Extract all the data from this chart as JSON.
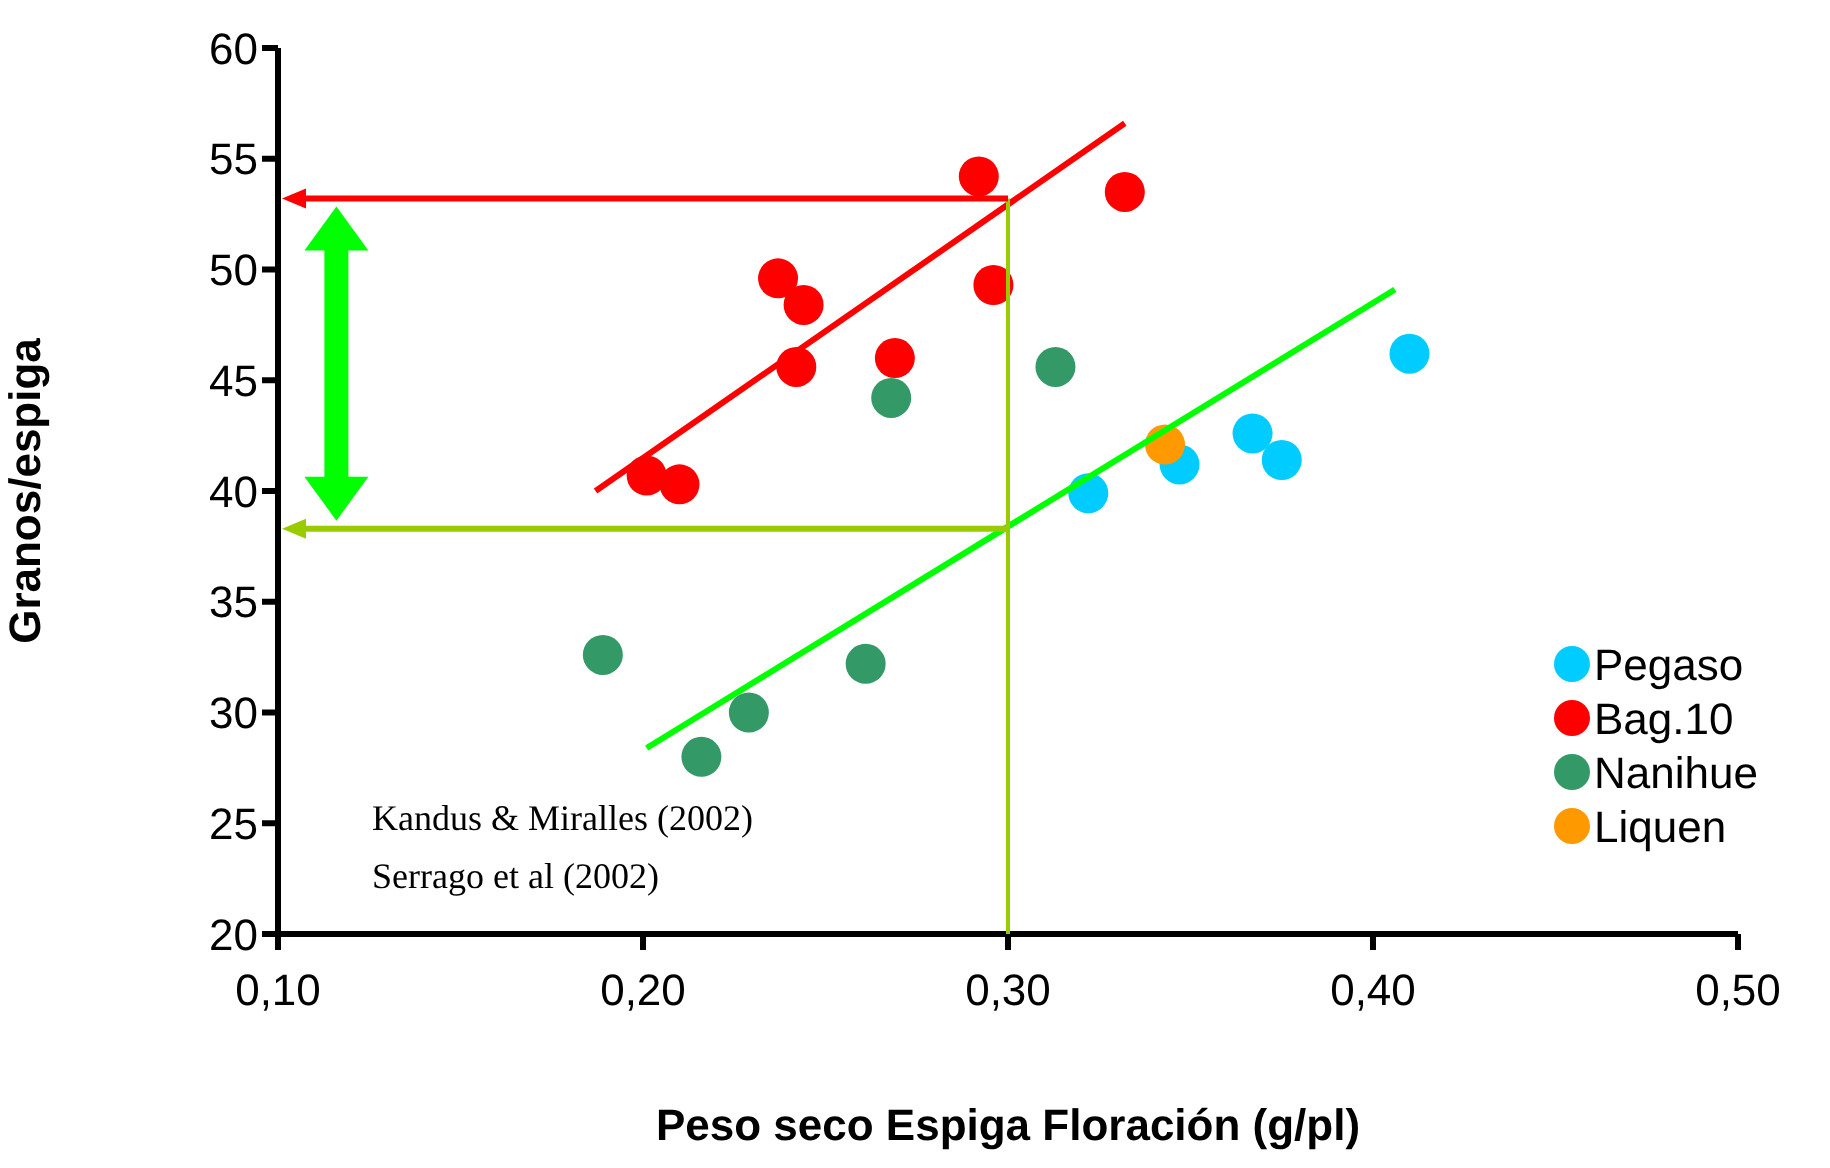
{
  "chart_data": {
    "type": "scatter",
    "xlabel": "Peso seco Espiga Floración (g/pl)",
    "ylabel": "Granos/espiga",
    "xlim": [
      0.1,
      0.5
    ],
    "xticks": [
      {
        "value": 0.1,
        "label": "0,10"
      },
      {
        "value": 0.2,
        "label": "0,20"
      },
      {
        "value": 0.3,
        "label": "0,30"
      },
      {
        "value": 0.4,
        "label": "0,40"
      },
      {
        "value": 0.5,
        "label": "0,50"
      }
    ],
    "ylim": [
      20,
      60
    ],
    "yticks": [
      20,
      25,
      30,
      35,
      40,
      45,
      50,
      55,
      60
    ],
    "grid": false,
    "legend": "bottom right",
    "marker": "circle",
    "series": [
      {
        "name": "Pegaso",
        "color": "#00ccff",
        "x": [
          0.322,
          0.347,
          0.367,
          0.375,
          0.41
        ],
        "values": [
          39.9,
          41.2,
          42.6,
          41.4,
          46.2
        ]
      },
      {
        "name": "Bag.10",
        "color": "#ff0000",
        "x": [
          0.292,
          0.332,
          0.237,
          0.244,
          0.242,
          0.269,
          0.296,
          0.201,
          0.21
        ],
        "values": [
          54.2,
          53.5,
          49.6,
          48.4,
          45.6,
          46.0,
          49.3,
          40.7,
          40.3
        ]
      },
      {
        "name": "Nanihue",
        "color": "#339966",
        "x": [
          0.268,
          0.313,
          0.189,
          0.229,
          0.216,
          0.261
        ],
        "values": [
          44.2,
          45.6,
          32.6,
          30.0,
          28.0,
          32.2
        ]
      },
      {
        "name": "Liquen",
        "color": "#ff9900",
        "x": [
          0.343
        ],
        "values": [
          42.1
        ]
      },
      {
        "type": "line",
        "color": "#ff0000",
        "marker": "none",
        "x": [
          0.187,
          0.332
        ],
        "values": [
          40.0,
          56.6
        ]
      },
      {
        "type": "line",
        "color": "#00ff00",
        "marker": "none",
        "x": [
          0.201,
          0.406
        ],
        "values": [
          28.4,
          49.1
        ]
      }
    ],
    "ref_lines": [
      {
        "axis": "x",
        "value": 0.3,
        "color": "#99cc00"
      },
      {
        "axis": "y",
        "value": 53.2,
        "color": "#ff0000"
      },
      {
        "axis": "y",
        "value": 38.3,
        "color": "#99cc00"
      }
    ],
    "annotations": [
      "Kandus & Miralles (2002)",
      "Serrago et al (2002)"
    ]
  }
}
